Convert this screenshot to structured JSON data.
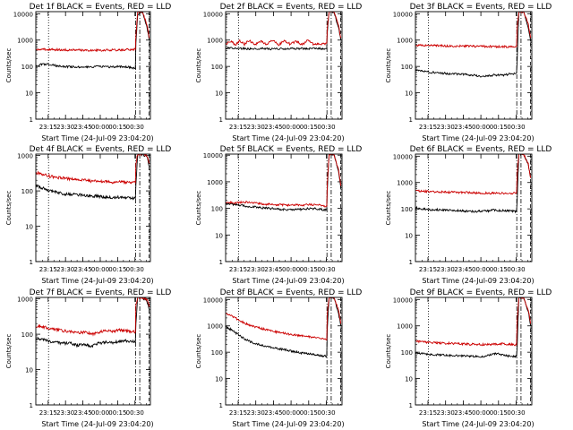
{
  "page": {
    "background": "#ffffff",
    "colors": {
      "events": "#000000",
      "lld": "#cc0000",
      "axis": "#000000"
    }
  },
  "chart_data": [
    {
      "type": "line",
      "title": "Det 1f BLACK = Events, RED = LLD",
      "xlabel": "Start Time (24-Jul-09 23:04:20)",
      "ylabel": "Counts/sec",
      "ylog": true,
      "ylim": [
        1,
        12000
      ],
      "yticks": [
        "1",
        "10",
        "100",
        "1000",
        "10000"
      ],
      "xticks": [
        "23:15",
        "23:30",
        "23:45",
        "00:00",
        "00:15",
        "00:30"
      ],
      "x_unit": "minutes after 23:04:20",
      "xlim": [
        0,
        99
      ],
      "markers": {
        "dotted": 11,
        "dash_dot": [
          86.2,
          89.8
        ],
        "dashed": 97.8
      },
      "series": [
        {
          "name": "Events",
          "color": "#000000",
          "x": [
            0,
            6,
            11,
            20,
            30,
            40,
            50,
            58,
            64,
            70,
            78,
            86,
            86.5,
            88,
            92,
            96,
            98
          ],
          "y": [
            100,
            125,
            120,
            102,
            97,
            95,
            97,
            100,
            95,
            100,
            98,
            83,
            800,
            9000,
            12000,
            3000,
            1000
          ]
        },
        {
          "name": "LLD",
          "color": "#cc0000",
          "x": [
            0,
            10,
            20,
            30,
            40,
            50,
            60,
            70,
            80,
            86,
            86.5,
            88,
            92,
            96,
            98
          ],
          "y": [
            450,
            440,
            430,
            420,
            415,
            410,
            415,
            420,
            430,
            440,
            1500,
            12000,
            12000,
            4000,
            1200
          ]
        }
      ]
    },
    {
      "type": "line",
      "title": "Det 2f BLACK = Events, RED = LLD",
      "xlabel": "Start Time (24-Jul-09 23:04:20)",
      "ylabel": "Counts/sec",
      "ylog": true,
      "ylim": [
        1,
        12000
      ],
      "yticks": [
        "1",
        "10",
        "100",
        "1000",
        "10000"
      ],
      "xticks": [
        "23:15",
        "23:30",
        "23:45",
        "00:00",
        "00:15",
        "00:30"
      ],
      "x_unit": "minutes after 23:04:20",
      "xlim": [
        0,
        99
      ],
      "markers": {
        "dotted": 11,
        "dash_dot": [
          86.2,
          89.8
        ],
        "dashed": 97.8
      },
      "series": [
        {
          "name": "Events",
          "color": "#000000",
          "x": [
            0,
            10,
            20,
            30,
            40,
            50,
            60,
            70,
            80,
            86,
            86.5,
            88,
            92,
            96,
            98
          ],
          "y": [
            500,
            480,
            470,
            480,
            460,
            470,
            480,
            470,
            480,
            470,
            2000,
            12000,
            12000,
            3000,
            1000
          ]
        },
        {
          "name": "LLD",
          "color": "#cc0000",
          "x": [
            0,
            5,
            8,
            12,
            16,
            20,
            25,
            30,
            35,
            40,
            45,
            50,
            55,
            60,
            65,
            70,
            75,
            80,
            86,
            86.5,
            88,
            92,
            96,
            98
          ],
          "y": [
            700,
            900,
            650,
            950,
            680,
            1000,
            660,
            900,
            680,
            1000,
            650,
            950,
            700,
            900,
            660,
            1000,
            680,
            700,
            750,
            3000,
            12000,
            12000,
            4000,
            1200
          ]
        }
      ]
    },
    {
      "type": "line",
      "title": "Det 3f BLACK = Events, RED = LLD",
      "xlabel": "Start Time (24-Jul-09 23:04:20)",
      "ylabel": "Counts/sec",
      "ylog": true,
      "ylim": [
        1,
        12000
      ],
      "yticks": [
        "1",
        "10",
        "100",
        "1000",
        "10000"
      ],
      "xticks": [
        "23:15",
        "23:30",
        "23:45",
        "00:00",
        "00:15",
        "00:30"
      ],
      "x_unit": "minutes after 23:04:20",
      "xlim": [
        0,
        99
      ],
      "markers": {
        "dotted": 11,
        "dash_dot": [
          86.2,
          89.8
        ],
        "dashed": 97.8
      },
      "series": [
        {
          "name": "Events",
          "color": "#000000",
          "x": [
            0,
            8,
            16,
            24,
            32,
            40,
            48,
            56,
            62,
            68,
            74,
            80,
            86,
            86.5,
            88,
            92,
            96,
            98
          ],
          "y": [
            75,
            65,
            58,
            55,
            52,
            50,
            47,
            42,
            44,
            48,
            46,
            52,
            55,
            150,
            12000,
            12000,
            3000,
            900
          ]
        },
        {
          "name": "LLD",
          "color": "#cc0000",
          "x": [
            0,
            10,
            20,
            30,
            40,
            50,
            60,
            70,
            80,
            86,
            86.5,
            88,
            92,
            96,
            98
          ],
          "y": [
            650,
            620,
            610,
            600,
            590,
            580,
            575,
            570,
            560,
            560,
            3000,
            12000,
            12000,
            4000,
            1200
          ]
        }
      ]
    },
    {
      "type": "line",
      "title": "Det 4f BLACK = Events, RED = LLD",
      "xlabel": "Start Time (24-Jul-09 23:04:20)",
      "ylabel": "Counts/sec",
      "ylog": true,
      "ylim": [
        1,
        1100
      ],
      "yticks": [
        "1",
        "10",
        "100",
        "1000"
      ],
      "xticks": [
        "23:15",
        "23:30",
        "23:45",
        "00:00",
        "00:15",
        "00:30"
      ],
      "x_unit": "minutes after 23:04:20",
      "xlim": [
        0,
        99
      ],
      "markers": {
        "dotted": 11,
        "dash_dot": [
          86.2,
          89.8
        ],
        "dashed": 97.8
      },
      "series": [
        {
          "name": "Events",
          "color": "#000000",
          "x": [
            0,
            6,
            12,
            18,
            24,
            30,
            36,
            42,
            48,
            54,
            60,
            66,
            72,
            78,
            86,
            86.5,
            88,
            92,
            96,
            98
          ],
          "y": [
            140,
            120,
            100,
            90,
            82,
            80,
            78,
            75,
            72,
            70,
            66,
            64,
            66,
            64,
            60,
            150,
            1100,
            1100,
            900,
            500
          ]
        },
        {
          "name": "LLD",
          "color": "#cc0000",
          "x": [
            0,
            6,
            12,
            18,
            24,
            30,
            36,
            42,
            48,
            54,
            60,
            66,
            72,
            78,
            86,
            86.5,
            88,
            92,
            96,
            98
          ],
          "y": [
            330,
            300,
            260,
            240,
            230,
            220,
            210,
            200,
            190,
            185,
            180,
            175,
            180,
            175,
            170,
            600,
            1100,
            1100,
            1000,
            600
          ]
        }
      ]
    },
    {
      "type": "line",
      "title": "Det 5f BLACK = Events, RED = LLD",
      "xlabel": "Start Time (24-Jul-09 23:04:20)",
      "ylabel": "Counts/sec",
      "ylog": true,
      "ylim": [
        1,
        11000
      ],
      "yticks": [
        "1",
        "10",
        "100",
        "1000",
        "10000"
      ],
      "xticks": [
        "23:15",
        "23:30",
        "23:45",
        "00:00",
        "00:15",
        "00:30"
      ],
      "x_unit": "minutes after 23:04:20",
      "xlim": [
        0,
        99
      ],
      "markers": {
        "dotted": 11,
        "dash_dot": [
          86.2,
          89.8
        ],
        "dashed": 97.8
      },
      "series": [
        {
          "name": "Events",
          "color": "#000000",
          "x": [
            0,
            8,
            16,
            24,
            32,
            40,
            48,
            56,
            64,
            72,
            80,
            86,
            86.5,
            88,
            92,
            96,
            98
          ],
          "y": [
            150,
            140,
            125,
            115,
            105,
            98,
            92,
            88,
            92,
            100,
            95,
            85,
            500,
            11000,
            11000,
            2500,
            600
          ]
        },
        {
          "name": "LLD",
          "color": "#cc0000",
          "x": [
            0,
            8,
            16,
            24,
            32,
            40,
            48,
            56,
            64,
            72,
            80,
            86,
            86.5,
            88,
            92,
            96,
            98
          ],
          "y": [
            170,
            165,
            175,
            160,
            145,
            140,
            135,
            130,
            135,
            140,
            130,
            120,
            900,
            11000,
            11000,
            3000,
            700
          ]
        }
      ]
    },
    {
      "type": "line",
      "title": "Det 6f BLACK = Events, RED = LLD",
      "xlabel": "Start Time (24-Jul-09 23:04:20)",
      "ylabel": "Counts/sec",
      "ylog": true,
      "ylim": [
        1,
        12000
      ],
      "yticks": [
        "1",
        "10",
        "100",
        "1000",
        "10000"
      ],
      "xticks": [
        "23:15",
        "23:30",
        "23:45",
        "00:00",
        "00:15",
        "00:30"
      ],
      "x_unit": "minutes after 23:04:20",
      "xlim": [
        0,
        99
      ],
      "markers": {
        "dotted": 11,
        "dash_dot": [
          86.2,
          89.8
        ],
        "dashed": 97.8
      },
      "series": [
        {
          "name": "Events",
          "color": "#000000",
          "x": [
            0,
            6,
            12,
            20,
            28,
            36,
            44,
            52,
            60,
            66,
            72,
            78,
            86,
            86.5,
            88,
            92,
            96,
            98
          ],
          "y": [
            110,
            100,
            95,
            92,
            90,
            86,
            82,
            80,
            82,
            90,
            88,
            85,
            80,
            200,
            12000,
            12000,
            5000,
            1500
          ]
        },
        {
          "name": "LLD",
          "color": "#cc0000",
          "x": [
            0,
            10,
            20,
            30,
            40,
            50,
            60,
            70,
            80,
            86,
            86.5,
            88,
            92,
            96,
            98
          ],
          "y": [
            480,
            460,
            440,
            430,
            420,
            410,
            400,
            395,
            390,
            390,
            2000,
            12000,
            12000,
            5000,
            1500
          ]
        }
      ]
    },
    {
      "type": "line",
      "title": "Det 7f BLACK = Events, RED = LLD",
      "xlabel": "Start Time (24-Jul-09 23:04:20)",
      "ylabel": "Counts/sec",
      "ylog": true,
      "ylim": [
        1,
        1100
      ],
      "yticks": [
        "1",
        "10",
        "100",
        "1000"
      ],
      "xticks": [
        "23:15",
        "23:30",
        "23:45",
        "00:00",
        "00:15",
        "00:30"
      ],
      "x_unit": "minutes after 23:04:20",
      "xlim": [
        0,
        99
      ],
      "markers": {
        "dotted": 11,
        "dash_dot": [
          86.2,
          89.8
        ],
        "dashed": 97.8
      },
      "series": [
        {
          "name": "Events",
          "color": "#000000",
          "x": [
            0,
            6,
            12,
            18,
            24,
            30,
            36,
            42,
            48,
            54,
            60,
            66,
            72,
            78,
            86,
            86.5,
            88,
            92,
            96,
            98
          ],
          "y": [
            75,
            70,
            62,
            58,
            55,
            55,
            48,
            52,
            45,
            55,
            60,
            58,
            62,
            65,
            60,
            200,
            1100,
            1100,
            900,
            500
          ]
        },
        {
          "name": "LLD",
          "color": "#cc0000",
          "x": [
            0,
            6,
            12,
            18,
            24,
            30,
            36,
            42,
            48,
            54,
            60,
            66,
            72,
            78,
            86,
            86.5,
            88,
            92,
            96,
            98
          ],
          "y": [
            170,
            160,
            145,
            135,
            125,
            120,
            110,
            115,
            100,
            115,
            125,
            120,
            130,
            125,
            115,
            700,
            1100,
            1100,
            1000,
            600
          ]
        }
      ]
    },
    {
      "type": "line",
      "title": "Det 8f BLACK = Events, RED = LLD",
      "xlabel": "Start Time (24-Jul-09 23:04:20)",
      "ylabel": "Counts/sec",
      "ylog": true,
      "ylim": [
        1,
        12000
      ],
      "yticks": [
        "1",
        "10",
        "100",
        "1000",
        "10000"
      ],
      "xticks": [
        "23:15",
        "23:30",
        "23:45",
        "00:00",
        "00:15",
        "00:30"
      ],
      "x_unit": "minutes after 23:04:20",
      "xlim": [
        0,
        99
      ],
      "markers": {
        "dotted": 11,
        "dash_dot": [
          86.2,
          89.8
        ],
        "dashed": 97.8
      },
      "series": [
        {
          "name": "Events",
          "color": "#000000",
          "x": [
            0,
            5,
            10,
            16,
            22,
            28,
            34,
            40,
            48,
            56,
            64,
            72,
            80,
            86,
            86.5,
            88,
            92,
            96,
            98
          ],
          "y": [
            950,
            700,
            500,
            320,
            240,
            200,
            170,
            150,
            130,
            110,
            95,
            85,
            75,
            70,
            800,
            12000,
            12000,
            3000,
            1000
          ]
        },
        {
          "name": "LLD",
          "color": "#cc0000",
          "x": [
            0,
            5,
            10,
            16,
            22,
            28,
            34,
            40,
            48,
            56,
            64,
            72,
            80,
            86,
            86.5,
            88,
            92,
            96,
            98
          ],
          "y": [
            3000,
            2400,
            1800,
            1300,
            1000,
            850,
            720,
            620,
            540,
            470,
            420,
            380,
            330,
            300,
            3000,
            12000,
            12000,
            4000,
            1200
          ]
        }
      ]
    },
    {
      "type": "line",
      "title": "Det 9f BLACK = Events, RED = LLD",
      "xlabel": "Start Time (24-Jul-09 23:04:20)",
      "ylabel": "Counts/sec",
      "ylog": true,
      "ylim": [
        1,
        12000
      ],
      "yticks": [
        "1",
        "10",
        "100",
        "1000",
        "10000"
      ],
      "xticks": [
        "23:15",
        "23:30",
        "23:45",
        "00:00",
        "00:15",
        "00:30"
      ],
      "x_unit": "minutes after 23:04:20",
      "xlim": [
        0,
        99
      ],
      "markers": {
        "dotted": 11,
        "dash_dot": [
          86.2,
          89.8
        ],
        "dashed": 97.8
      },
      "series": [
        {
          "name": "Events",
          "color": "#000000",
          "x": [
            0,
            8,
            16,
            24,
            32,
            40,
            48,
            56,
            62,
            68,
            74,
            80,
            86,
            86.5,
            88,
            92,
            96,
            98
          ],
          "y": [
            95,
            85,
            80,
            78,
            75,
            72,
            70,
            68,
            75,
            90,
            80,
            70,
            68,
            150,
            12000,
            12000,
            3500,
            1000
          ]
        },
        {
          "name": "LLD",
          "color": "#cc0000",
          "x": [
            0,
            8,
            16,
            24,
            32,
            40,
            48,
            56,
            64,
            72,
            80,
            86,
            86.5,
            88,
            92,
            96,
            98
          ],
          "y": [
            260,
            240,
            230,
            220,
            215,
            205,
            200,
            195,
            200,
            210,
            200,
            190,
            1500,
            12000,
            12000,
            4000,
            1200
          ]
        }
      ]
    }
  ]
}
